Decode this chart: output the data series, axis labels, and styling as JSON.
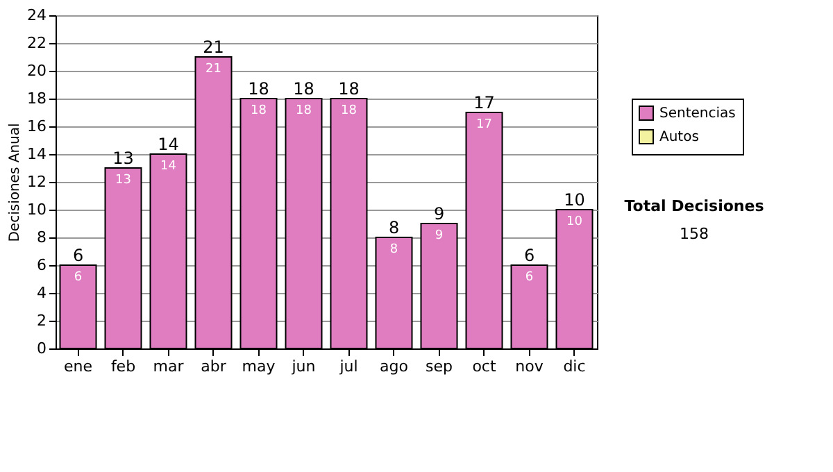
{
  "chart_data": {
    "type": "bar",
    "ylabel": "Decisiones Anual",
    "stacked": true,
    "categories": [
      "ene",
      "feb",
      "mar",
      "abr",
      "may",
      "jun",
      "jul",
      "ago",
      "sep",
      "oct",
      "nov",
      "dic"
    ],
    "series": [
      {
        "name": "Sentencias",
        "color": "#e07cc0",
        "values": [
          6,
          13,
          14,
          21,
          18,
          18,
          18,
          8,
          9,
          17,
          6,
          10
        ],
        "value_labels": [
          "6",
          "13",
          "14",
          "21",
          "18",
          "18",
          "18",
          "8",
          "9",
          "17",
          "6",
          "10"
        ]
      },
      {
        "name": "Autos",
        "color": "#f2f2a0",
        "values": [
          null,
          null,
          null,
          null,
          null,
          null,
          null,
          null,
          null,
          null,
          null,
          null
        ]
      }
    ],
    "totals": [
      "6",
      "13",
      "14",
      "21",
      "18",
      "18",
      "18",
      "8",
      "9",
      "17",
      "6",
      "10"
    ],
    "ylim": [
      0,
      24
    ],
    "yticks": [
      0,
      2,
      4,
      6,
      8,
      10,
      12,
      14,
      16,
      18,
      20,
      22,
      24
    ],
    "grid": "y",
    "legend": "right",
    "annotations": [
      "Total Decisiones",
      "158"
    ]
  }
}
